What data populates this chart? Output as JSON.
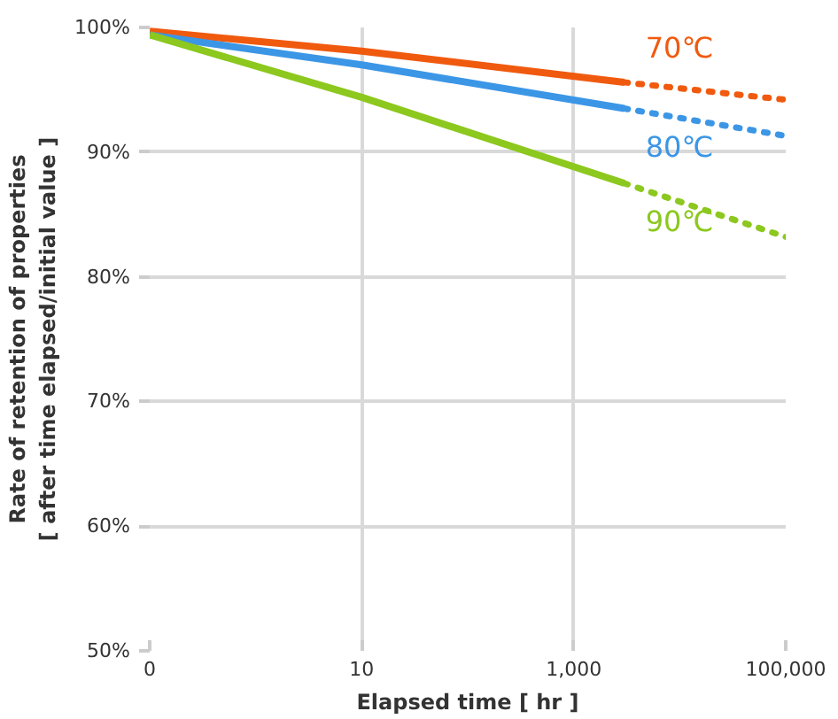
{
  "chart_data": {
    "type": "line",
    "xlabel": "Elapsed time [ hr ]",
    "ylabel": "Rate of retention of properties\n[ after time elapsed/initial value ]",
    "log": "x",
    "xlim": [
      0.1,
      100000
    ],
    "xticks": [
      {
        "value": 0.1,
        "label": "0"
      },
      10,
      {
        "value": 1000,
        "label": "1,000"
      },
      {
        "value": 100000,
        "label": "100,000"
      }
    ],
    "ylim": [
      50,
      100
    ],
    "yticks": [
      {
        "value": 50,
        "label": "50%"
      },
      {
        "value": 60,
        "label": "60%"
      },
      {
        "value": 70,
        "label": "70%"
      },
      {
        "value": 80,
        "label": "80%"
      },
      {
        "value": 90,
        "label": "90%"
      },
      {
        "value": 100,
        "label": "100%"
      }
    ],
    "grid": true,
    "series": [
      {
        "name": "70℃",
        "color": "#f05a0f",
        "x": [
          0.1,
          10,
          3000
        ],
        "values": [
          99.7,
          98.1,
          95.6
        ],
        "line_style": "solid"
      },
      {
        "name": "80℃",
        "color": "#3c96e6",
        "x": [
          0.1,
          10,
          3000
        ],
        "values": [
          99.4,
          97.0,
          93.5
        ],
        "line_style": "solid"
      },
      {
        "name": "90℃",
        "color": "#8cc81e",
        "x": [
          0.1,
          10,
          3000
        ],
        "values": [
          99.4,
          94.4,
          87.5
        ],
        "line_style": "solid"
      },
      {
        "color": "#f05a0f",
        "x": [
          3000,
          100000
        ],
        "values": [
          95.6,
          94.2
        ],
        "line_style": "dotted"
      },
      {
        "color": "#3c96e6",
        "x": [
          3000,
          100000
        ],
        "values": [
          93.5,
          91.3
        ],
        "line_style": "dotted"
      },
      {
        "color": "#8cc81e",
        "x": [
          3000,
          100000
        ],
        "values": [
          87.5,
          83.2
        ],
        "line_style": "dotted"
      }
    ]
  }
}
